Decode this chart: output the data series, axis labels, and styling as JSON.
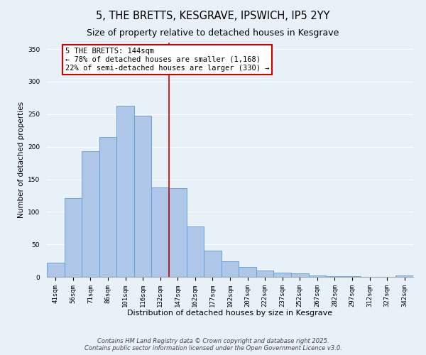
{
  "title": "5, THE BRETTS, KESGRAVE, IPSWICH, IP5 2YY",
  "subtitle": "Size of property relative to detached houses in Kesgrave",
  "xlabel": "Distribution of detached houses by size in Kesgrave",
  "ylabel": "Number of detached properties",
  "bar_labels": [
    "41sqm",
    "56sqm",
    "71sqm",
    "86sqm",
    "101sqm",
    "116sqm",
    "132sqm",
    "147sqm",
    "162sqm",
    "177sqm",
    "192sqm",
    "207sqm",
    "222sqm",
    "237sqm",
    "252sqm",
    "267sqm",
    "282sqm",
    "297sqm",
    "312sqm",
    "327sqm",
    "342sqm"
  ],
  "bar_values": [
    22,
    121,
    193,
    215,
    263,
    248,
    137,
    136,
    78,
    40,
    24,
    15,
    10,
    7,
    5,
    2,
    1,
    1,
    0,
    0,
    2
  ],
  "bar_color": "#aec6e8",
  "bar_edge_color": "#5b9bd5",
  "vline_x": 6.5,
  "vline_color": "#cc0000",
  "annotation_title": "5 THE BRETTS: 144sqm",
  "annotation_line1": "← 78% of detached houses are smaller (1,168)",
  "annotation_line2": "22% of semi-detached houses are larger (330) →",
  "annotation_box_color": "#ffffff",
  "annotation_box_edge": "#cc0000",
  "ylim": [
    0,
    360
  ],
  "yticks": [
    0,
    50,
    100,
    150,
    200,
    250,
    300,
    350
  ],
  "background_color": "#e8f0f8",
  "footer_line1": "Contains HM Land Registry data © Crown copyright and database right 2025.",
  "footer_line2": "Contains public sector information licensed under the Open Government Licence v3.0.",
  "title_fontsize": 10.5,
  "subtitle_fontsize": 9,
  "tick_fontsize": 6.5,
  "axis_label_fontsize": 8,
  "annotation_fontsize": 7.5,
  "footer_fontsize": 6,
  "ylabel_fontsize": 7.5
}
